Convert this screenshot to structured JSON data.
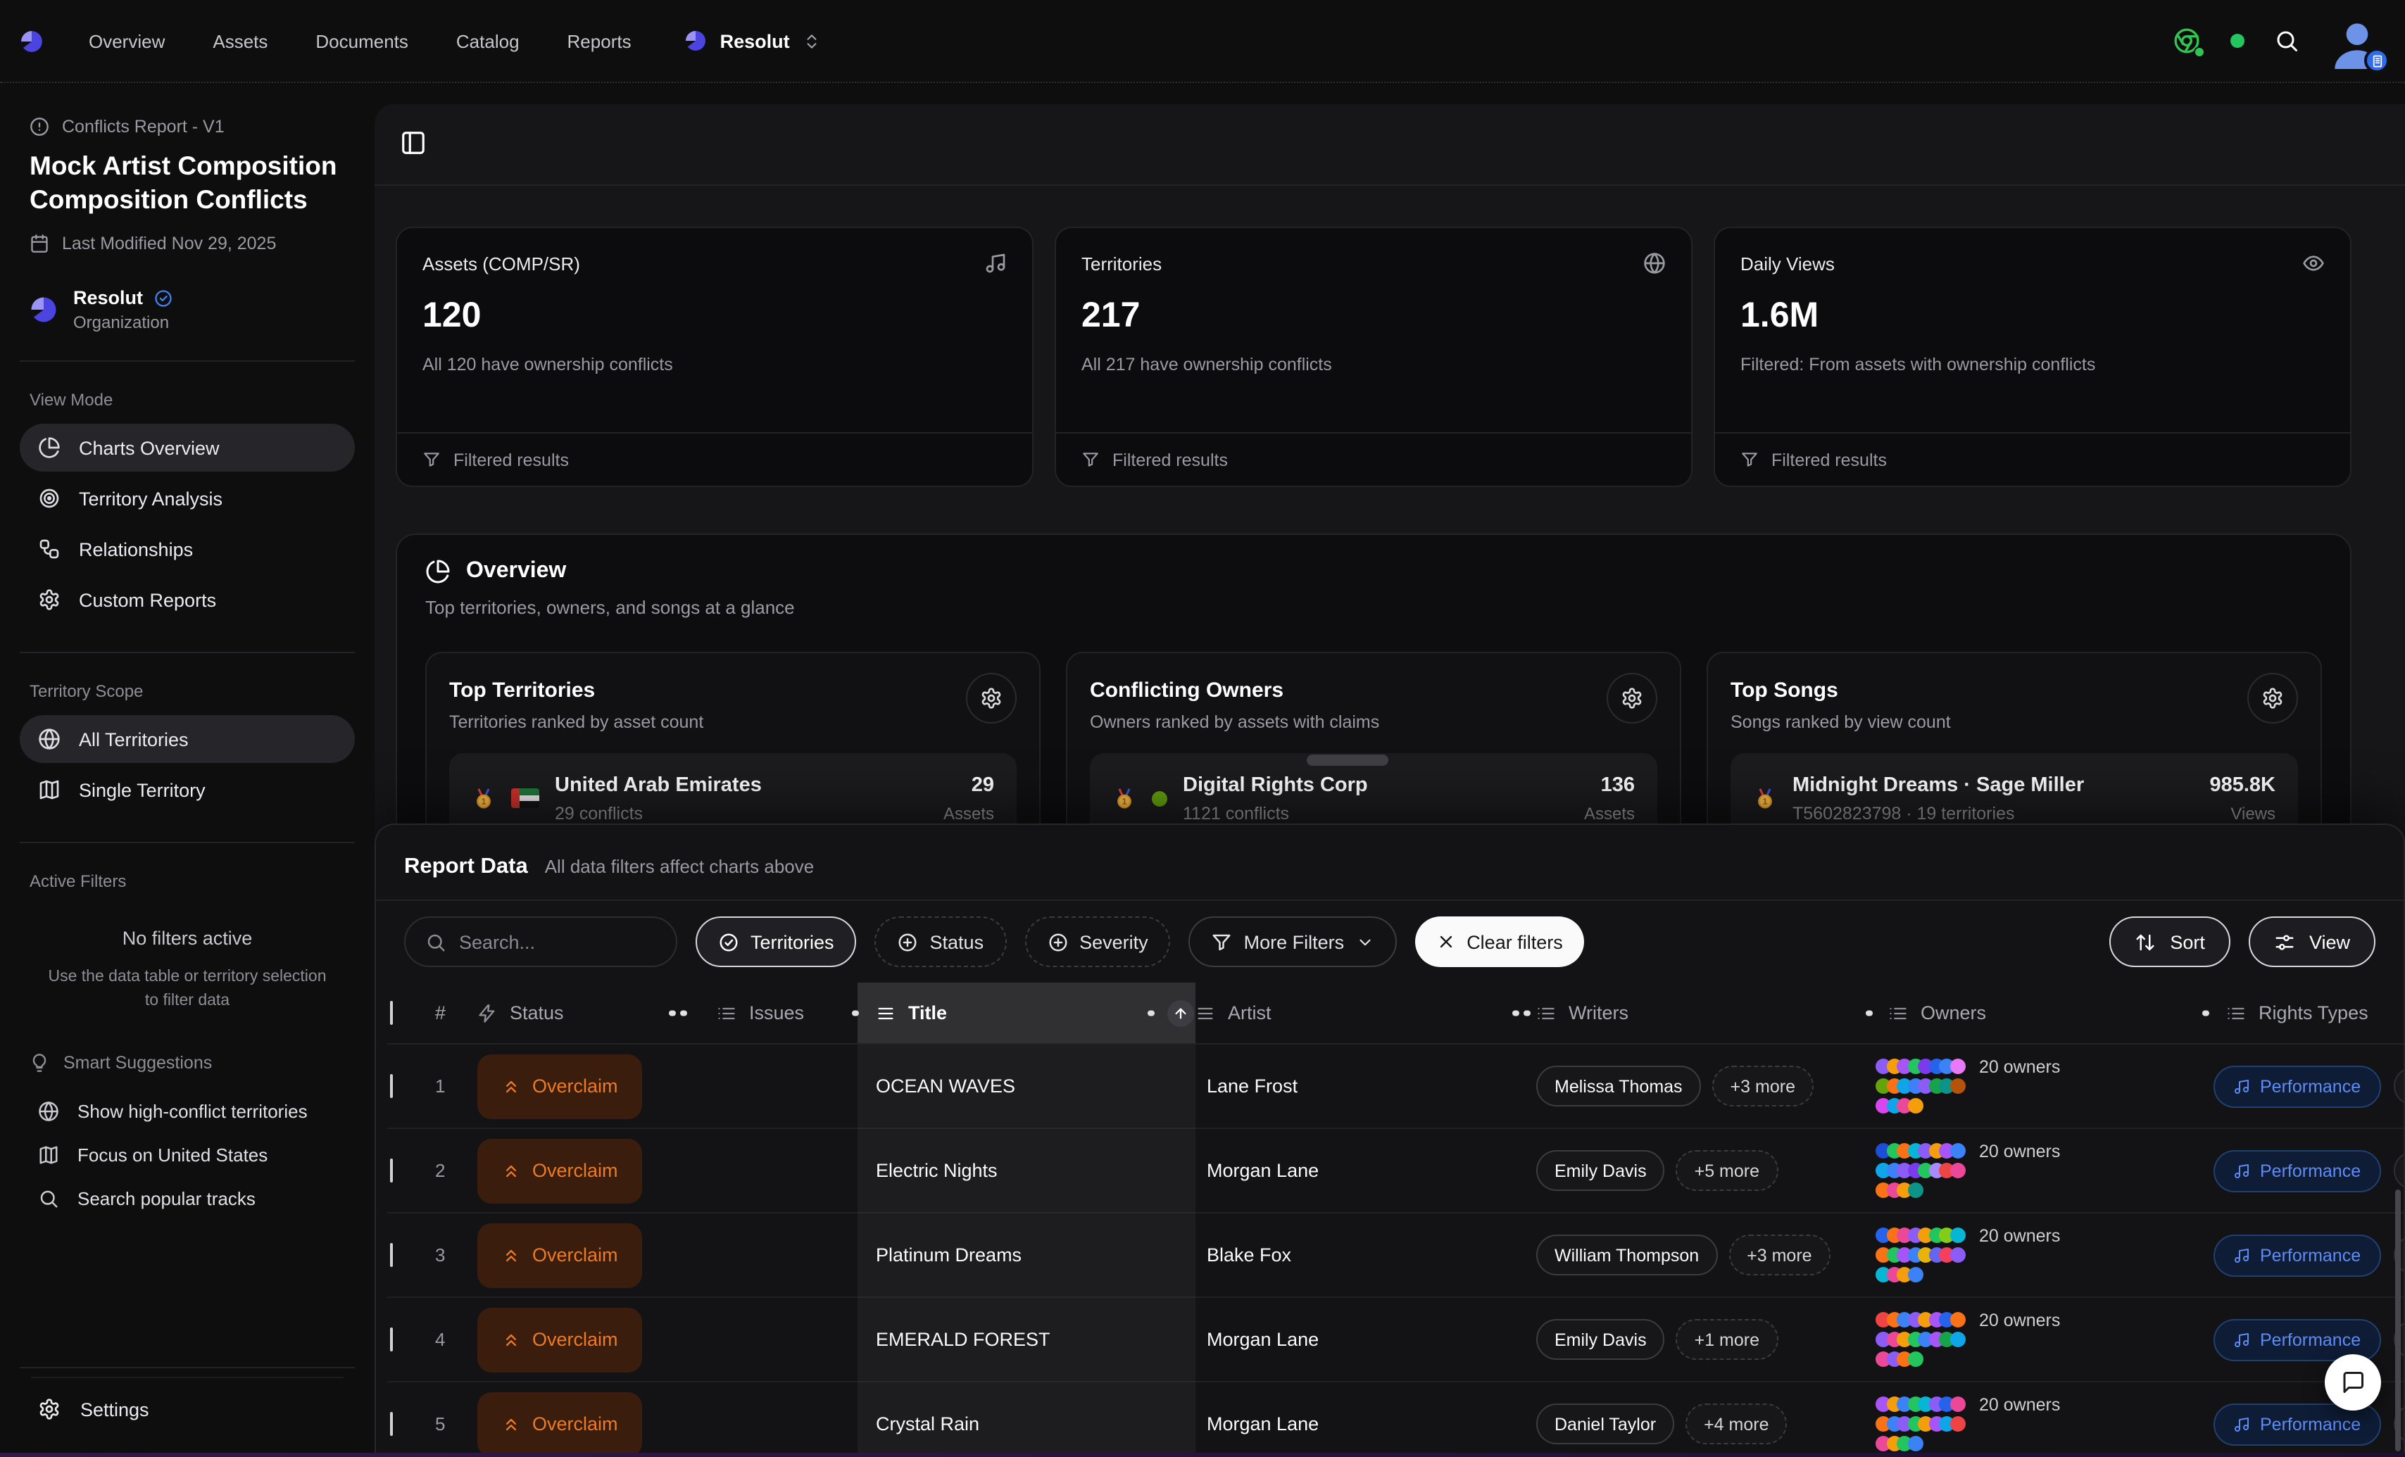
{
  "nav": {
    "links": [
      "Overview",
      "Assets",
      "Documents",
      "Catalog",
      "Reports"
    ],
    "workspace": "Resolut"
  },
  "sidebar": {
    "report_type": "Conflicts Report - V1",
    "title": "Mock Artist Composition Composition Conflicts",
    "last_modified": "Last Modified Nov 29, 2025",
    "org": {
      "name": "Resolut",
      "type": "Organization"
    },
    "view_mode": {
      "label": "View Mode",
      "items": [
        {
          "label": "Charts Overview"
        },
        {
          "label": "Territory Analysis"
        },
        {
          "label": "Relationships"
        },
        {
          "label": "Custom Reports"
        }
      ]
    },
    "territory_scope": {
      "label": "Territory Scope",
      "items": [
        {
          "label": "All Territories"
        },
        {
          "label": "Single Territory"
        }
      ]
    },
    "active_filters": {
      "label": "Active Filters",
      "empty_title": "No filters active",
      "empty_hint": "Use the data table or territory selection to filter data"
    },
    "suggestions": {
      "label": "Smart Suggestions",
      "items": [
        {
          "label": "Show high-conflict territories"
        },
        {
          "label": "Focus on United States"
        },
        {
          "label": "Search popular tracks"
        }
      ]
    },
    "settings_label": "Settings"
  },
  "stats": [
    {
      "title": "Assets (COMP/SR)",
      "value": "120",
      "subtitle": "All 120 have ownership conflicts",
      "footer": "Filtered results"
    },
    {
      "title": "Territories",
      "value": "217",
      "subtitle": "All 217 have ownership conflicts",
      "footer": "Filtered results"
    },
    {
      "title": "Daily Views",
      "value": "1.6M",
      "subtitle": "Filtered: From assets with ownership conflicts",
      "footer": "Filtered results"
    }
  ],
  "overview": {
    "title": "Overview",
    "subtitle": "Top territories, owners, and songs at a glance",
    "cards": [
      {
        "title": "Top Territories",
        "subtitle": "Territories ranked by asset count",
        "item": {
          "name": "United Arab Emirates",
          "detail": "29 conflicts",
          "value": "29",
          "unit": "Assets"
        }
      },
      {
        "title": "Conflicting Owners",
        "subtitle": "Owners ranked by assets with claims",
        "item": {
          "name": "Digital Rights Corp",
          "detail": "1121 conflicts",
          "value": "136",
          "unit": "Assets"
        }
      },
      {
        "title": "Top Songs",
        "subtitle": "Songs ranked by view count",
        "item": {
          "name": "Midnight Dreams · Sage Miller",
          "detail": "T5602823798 · 19 territories",
          "value": "985.8K",
          "unit": "Views"
        }
      }
    ]
  },
  "report": {
    "title": "Report Data",
    "subtitle": "All data filters affect charts above",
    "search_placeholder": "Search...",
    "filters": {
      "territories": "Territories",
      "status": "Status",
      "severity": "Severity",
      "more": "More Filters",
      "clear": "Clear filters"
    },
    "sort_label": "Sort",
    "view_label": "View",
    "table": {
      "columns": [
        "#",
        "Status",
        "Issues",
        "Title",
        "Artist",
        "Writers",
        "Owners",
        "Rights Types"
      ],
      "rows": [
        {
          "num": "1",
          "status": "Overclaim",
          "title": "OCEAN WAVES",
          "artist": "Lane Frost",
          "writer": "Melissa Thomas",
          "more": "+3 more",
          "owners_label": "20 owners",
          "rights": "Performance",
          "owner_dots": [
            [
              "#8b5cf6",
              "#f59e0b",
              "#a855f7",
              "#22c55e",
              "#7c3aed",
              "#2563eb",
              "#3b82f6",
              "#e879f9"
            ],
            [
              "#65a30d",
              "#f97316",
              "#0ea5e9",
              "#3b82f6",
              "#8b5cf6",
              "#16a34a",
              "#0d9488",
              "#b45309"
            ],
            [
              "#d946ef",
              "#0ea5e9",
              "#ec4899",
              "#f59e0b"
            ]
          ]
        },
        {
          "num": "2",
          "status": "Overclaim",
          "title": "Electric Nights",
          "artist": "Morgan Lane",
          "writer": "Emily Davis",
          "more": "+5 more",
          "owners_label": "20 owners",
          "rights": "Performance",
          "owner_dots": [
            [
              "#1d4ed8",
              "#22c55e",
              "#f97316",
              "#06b6d4",
              "#8b5cf6",
              "#f59e0b",
              "#a855f7",
              "#3b82f6"
            ],
            [
              "#0ea5e9",
              "#3b82f6",
              "#8b5cf6",
              "#7c3aed",
              "#22c55e",
              "#a78bfa",
              "#ef4444",
              "#ec4899"
            ],
            [
              "#f97316",
              "#ec4899",
              "#f59e0b",
              "#0d9488"
            ]
          ]
        },
        {
          "num": "3",
          "status": "Overclaim",
          "title": "Platinum Dreams",
          "artist": "Blake Fox",
          "writer": "William Thompson",
          "more": "+3 more",
          "owners_label": "20 owners",
          "rights": "Performance",
          "owner_dots": [
            [
              "#2563eb",
              "#f97316",
              "#ec4899",
              "#8b5cf6",
              "#f59e0b",
              "#22c55e",
              "#84cc16",
              "#06b6d4"
            ],
            [
              "#f97316",
              "#22c55e",
              "#a855f7",
              "#3b82f6",
              "#eab308",
              "#6366f1",
              "#f43f5e",
              "#8b5cf6"
            ],
            [
              "#06b6d4",
              "#ec4899",
              "#f59e0b",
              "#3b82f6"
            ]
          ]
        },
        {
          "num": "4",
          "status": "Overclaim",
          "title": "EMERALD FOREST",
          "artist": "Morgan Lane",
          "writer": "Emily Davis",
          "more": "+1 more",
          "owners_label": "20 owners",
          "rights": "Performance",
          "owner_dots": [
            [
              "#ef4444",
              "#f97316",
              "#3b82f6",
              "#8b5cf6",
              "#f59e0b",
              "#a855f7",
              "#2563eb",
              "#f97316"
            ],
            [
              "#8b5cf6",
              "#ec4899",
              "#f59e0b",
              "#22c55e",
              "#3b82f6",
              "#a855f7",
              "#16a34a",
              "#0ea5e9"
            ],
            [
              "#ec4899",
              "#8b5cf6",
              "#f97316",
              "#22c55e"
            ]
          ]
        },
        {
          "num": "5",
          "status": "Overclaim",
          "title": "Crystal Rain",
          "artist": "Morgan Lane",
          "writer": "Daniel Taylor",
          "more": "+4 more",
          "owners_label": "20 owners",
          "rights": "Performance",
          "owner_dots": [
            [
              "#a855f7",
              "#f59e0b",
              "#3b82f6",
              "#22c55e",
              "#06b6d4",
              "#8b5cf6",
              "#2563eb",
              "#ec4899"
            ],
            [
              "#f97316",
              "#3b82f6",
              "#8b5cf6",
              "#22c55e",
              "#f59e0b",
              "#a855f7",
              "#0ea5e9",
              "#ef4444"
            ],
            [
              "#ec4899",
              "#f59e0b",
              "#22c55e",
              "#3b82f6"
            ]
          ]
        }
      ]
    }
  },
  "colors": {
    "accent_orange": "#ee7a24",
    "performance_blue": "#5e8cf5",
    "green_status": "#22c55e"
  }
}
